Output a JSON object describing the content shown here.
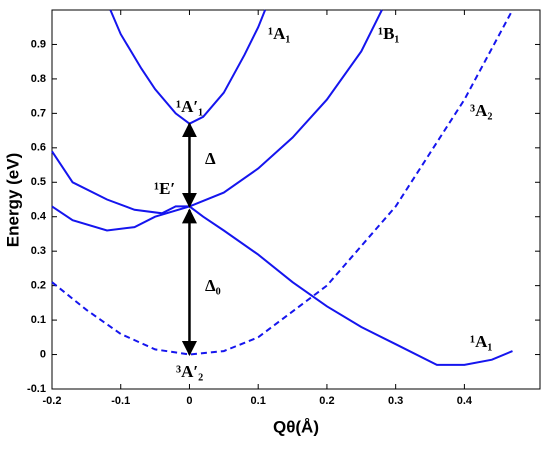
{
  "chart_data": {
    "type": "line",
    "xlabel": "Qθ(Å)",
    "ylabel": "Energy (eV)",
    "xlim": [
      -0.2,
      0.51
    ],
    "ylim": [
      -0.1,
      1.0
    ],
    "xticks": [
      -0.2,
      -0.1,
      0,
      0.1,
      0.2,
      0.3,
      0.4
    ],
    "yticks": [
      -0.1,
      0,
      0.1,
      0.2,
      0.3,
      0.4,
      0.5,
      0.6,
      0.7,
      0.8,
      0.9
    ],
    "series": [
      {
        "color": "#1515ee",
        "dashed": false,
        "x": [
          -0.115,
          -0.1,
          -0.07,
          -0.05,
          -0.02,
          0,
          0.02,
          0.05,
          0.08,
          0.1,
          0.11
        ],
        "values": [
          1.0,
          0.93,
          0.83,
          0.77,
          0.7,
          0.67,
          0.69,
          0.76,
          0.87,
          0.95,
          1.0
        ]
      },
      {
        "color": "#1515ee",
        "dashed": false,
        "x": [
          -0.2,
          -0.17,
          -0.12,
          -0.08,
          -0.05,
          0,
          0.05,
          0.1,
          0.15,
          0.2,
          0.25,
          0.28
        ],
        "values": [
          0.43,
          0.39,
          0.36,
          0.37,
          0.4,
          0.43,
          0.47,
          0.54,
          0.63,
          0.74,
          0.88,
          1.0
        ]
      },
      {
        "color": "#1515ee",
        "dashed": false,
        "x": [
          -0.2,
          -0.17,
          -0.12,
          -0.08,
          -0.04,
          -0.02,
          0,
          0.02,
          0.05,
          0.1,
          0.15,
          0.2,
          0.25,
          0.3,
          0.36,
          0.4,
          0.44,
          0.47
        ],
        "values": [
          0.59,
          0.5,
          0.45,
          0.42,
          0.41,
          0.43,
          0.43,
          0.4,
          0.36,
          0.29,
          0.21,
          0.14,
          0.08,
          0.03,
          -0.03,
          -0.03,
          -0.015,
          0.01
        ]
      },
      {
        "color": "#1515ee",
        "dashed": true,
        "x": [
          -0.2,
          -0.15,
          -0.1,
          -0.05,
          0,
          0.05,
          0.1,
          0.2,
          0.3,
          0.4,
          0.47
        ],
        "values": [
          0.21,
          0.13,
          0.06,
          0.015,
          0,
          0.01,
          0.05,
          0.2,
          0.43,
          0.74,
          1.0
        ]
      }
    ],
    "arrows": [
      {
        "x": 0,
        "values": [
          0.43,
          0.67
        ]
      },
      {
        "x": 0,
        "values": [
          0,
          0.42
        ]
      }
    ],
    "annotations": [
      "¹A₁",
      "¹B₁",
      "³A₂",
      "¹A′₁",
      "Δ",
      "¹E′",
      "Δ₀",
      "³A′₂",
      "¹A₁"
    ]
  }
}
